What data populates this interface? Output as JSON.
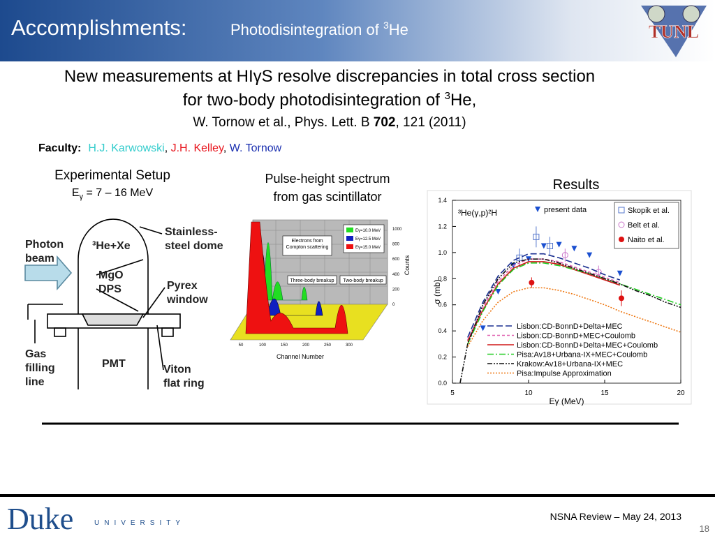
{
  "header": {
    "title": "Accomplishments:",
    "subtitle": "Photodisintegration of ",
    "subtitle_sup": "3",
    "subtitle_end": "He",
    "logo": "TUNL"
  },
  "headline": {
    "line1": "New measurements at HIγS resolve discrepancies in total cross section",
    "line2": "for two-body photodisintegration of ",
    "line2_sup": "3",
    "line2_end": "He,",
    "citation_start": "W. Tornow et al., Phys. Lett. B ",
    "citation_volume": "702",
    "citation_end": ", 121 (2011)"
  },
  "faculty": {
    "label": "Faculty:",
    "separator": ", ",
    "names": [
      {
        "name": "H.J. Karwowski",
        "color": "#33cccc"
      },
      {
        "name": "J.H. Kelley",
        "color": "#e8141c"
      },
      {
        "name": "W. Tornow",
        "color": "#1a2fb0"
      }
    ]
  },
  "setup": {
    "title": "Experimental Setup",
    "energy_symbol": "E",
    "energy_sub": "γ",
    "energy_range": " = 7 – 16 MeV",
    "labels": [
      {
        "lines": [
          "Photon",
          "beam"
        ]
      },
      {
        "lines": [
          "³He+Xe"
        ]
      },
      {
        "lines": [
          "Stainless-",
          "steel dome"
        ]
      },
      {
        "lines": [
          "MgO",
          "DPS"
        ]
      },
      {
        "lines": [
          "Pyrex",
          "window"
        ]
      },
      {
        "lines": [
          "Gas",
          "filling",
          "line"
        ]
      },
      {
        "lines": [
          "PMT"
        ]
      },
      {
        "lines": [
          "Viton",
          "flat ring"
        ]
      }
    ]
  },
  "spectrum": {
    "title_line1": "Pulse-height spectrum",
    "title_line2": "from gas scintillator",
    "annotations": [
      {
        "lines": [
          "Electrons from",
          "Compton scattering"
        ]
      },
      {
        "lines": [
          "Three-body breakup"
        ]
      },
      {
        "lines": [
          "Two-body breakup"
        ]
      }
    ],
    "legend": [
      {
        "label": "Eγ=10.0 MeV",
        "color": "#22dd22"
      },
      {
        "label": "Eγ=12.5 MeV",
        "color": "#1020c0"
      },
      {
        "label": "Eγ=15.0 MeV",
        "color": "#ee1111"
      }
    ],
    "xlabel": "Channel Number",
    "ylabel": "Counts",
    "xticks": [
      50,
      100,
      150,
      200,
      250,
      300
    ],
    "yticks": [
      0,
      200,
      400,
      600,
      800,
      1000
    ]
  },
  "results": {
    "title": "Results",
    "chart": {
      "type": "line",
      "reaction": "³He(γ,p)²H",
      "xlabel": "Eγ (MeV)",
      "ylabel": "σ (mb)",
      "xlim": [
        5,
        20
      ],
      "ylim": [
        0,
        1.4
      ],
      "xticks": [
        5,
        10,
        15,
        20
      ],
      "yticks": [
        {
          "value": 0,
          "label": "0.0"
        },
        0.2,
        0.4,
        0.6,
        0.8,
        {
          "value": 1,
          "label": "1.0"
        },
        1.2,
        1.4
      ],
      "series": [
        {
          "name": "present data",
          "color": "#1a4fd0",
          "marker": "triangle",
          "x": [
            7,
            8,
            9,
            10,
            11,
            12,
            13,
            14,
            16
          ],
          "values": [
            0.42,
            0.7,
            0.9,
            0.95,
            1.05,
            1.06,
            1.03,
            0.98,
            0.84
          ]
        },
        {
          "name": "Skopik et al.",
          "color": "#5577cc",
          "marker": "square",
          "x": [
            9.4,
            10.5,
            11.4
          ],
          "values": [
            0.96,
            1.12,
            1.05
          ],
          "errors": [
            0.07,
            0.08,
            0.07
          ]
        },
        {
          "name": "Belt et al.",
          "color": "#cc77cc",
          "marker": "circle-open",
          "x": [
            12.4,
            14.6
          ],
          "values": [
            0.98,
            0.85
          ],
          "errors": [
            0.05,
            0.05
          ]
        },
        {
          "name": "Naito et al.",
          "color": "#dd1111",
          "marker": "circle",
          "x": [
            10.2,
            16.1
          ],
          "values": [
            0.77,
            0.65
          ],
          "errors": [
            0.04,
            0.06
          ]
        },
        {
          "name": "Lisbon:CD-BonnD+Delta+MEC",
          "color": "#1a2f90",
          "style": "dashed",
          "x": [
            6,
            7,
            8,
            9,
            10,
            11,
            12,
            13,
            14,
            15,
            16
          ],
          "values": [
            0.35,
            0.62,
            0.82,
            0.94,
            0.99,
            0.99,
            0.96,
            0.92,
            0.88,
            0.83,
            0.79
          ]
        },
        {
          "name": "Lisbon:CD-BonnD+MEC+Coulomb",
          "color": "#e060b0",
          "style": "short-dashed",
          "x": [
            6,
            7,
            8,
            9,
            10,
            11,
            12,
            13,
            14,
            15,
            16
          ],
          "values": [
            0.33,
            0.58,
            0.78,
            0.9,
            0.95,
            0.95,
            0.93,
            0.89,
            0.85,
            0.81,
            0.77
          ]
        },
        {
          "name": "Lisbon:CD-BonnD+Delta+MEC+Coulomb",
          "color": "#d01818",
          "style": "solid",
          "x": [
            6,
            7,
            8,
            9,
            10,
            11,
            12,
            13,
            14,
            15,
            16
          ],
          "values": [
            0.32,
            0.56,
            0.76,
            0.88,
            0.93,
            0.93,
            0.91,
            0.87,
            0.83,
            0.79,
            0.75
          ]
        },
        {
          "name": "Pisa:Av18+Urbana-IX+MEC+Coulomb",
          "color": "#22cc22",
          "style": "dash-dot",
          "x": [
            6,
            7,
            8,
            9,
            10,
            11,
            12,
            13,
            14,
            15,
            16,
            17,
            18,
            19,
            20
          ],
          "values": [
            0.3,
            0.55,
            0.75,
            0.87,
            0.92,
            0.92,
            0.9,
            0.87,
            0.84,
            0.8,
            0.76,
            0.72,
            0.68,
            0.64,
            0.6
          ]
        },
        {
          "name": "Krakow:Av18+Urbana-IX+MEC",
          "color": "#111111",
          "style": "dash-dot-dot",
          "x": [
            5.5,
            6,
            7,
            8,
            9,
            10,
            11,
            12,
            13,
            14,
            15,
            16,
            17,
            18,
            19,
            20
          ],
          "values": [
            0,
            0.3,
            0.6,
            0.8,
            0.92,
            0.95,
            0.95,
            0.92,
            0.88,
            0.84,
            0.8,
            0.76,
            0.71,
            0.67,
            0.62,
            0.58
          ]
        },
        {
          "name": "Pisa:Impulse Approximation",
          "color": "#ee7711",
          "style": "dotted",
          "x": [
            6,
            7,
            8,
            9,
            10,
            11,
            12,
            13,
            14,
            15,
            16,
            17,
            18,
            19,
            20
          ],
          "values": [
            0.28,
            0.48,
            0.62,
            0.7,
            0.73,
            0.73,
            0.71,
            0.68,
            0.64,
            0.6,
            0.55,
            0.51,
            0.47,
            0.43,
            0.39
          ]
        }
      ]
    }
  },
  "footer": {
    "logo": "Duke",
    "logo_sub": "UNIVERSITY",
    "event": "NSNA Review – May 24, 2013",
    "page": "18"
  }
}
